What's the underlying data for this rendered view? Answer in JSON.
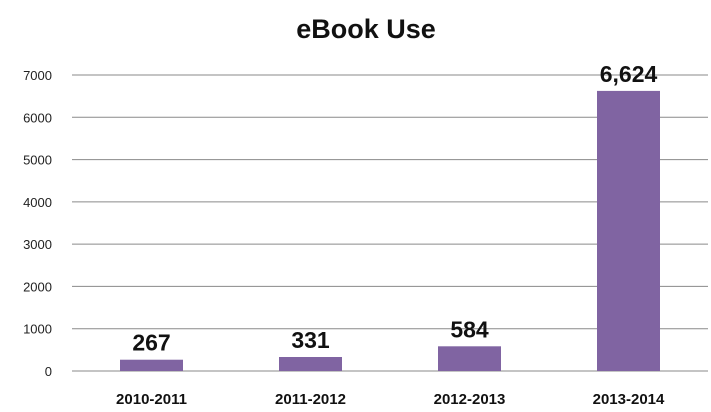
{
  "chart_data": {
    "type": "bar",
    "title": "eBook Use",
    "categories": [
      "2010-2011",
      "2011-2012",
      "2012-2013",
      "2013-2014"
    ],
    "values": [
      267,
      331,
      584,
      6624
    ],
    "data_labels": [
      "267",
      "331",
      "584",
      "6,624"
    ],
    "ylim": [
      0,
      7000
    ],
    "yticks": [
      0,
      1000,
      2000,
      3000,
      4000,
      5000,
      6000,
      7000
    ],
    "xlabel": "",
    "ylabel": "",
    "grid": true,
    "legend": "none",
    "bar_color": "#8064a2",
    "grid_color": "#8a8a8a"
  }
}
